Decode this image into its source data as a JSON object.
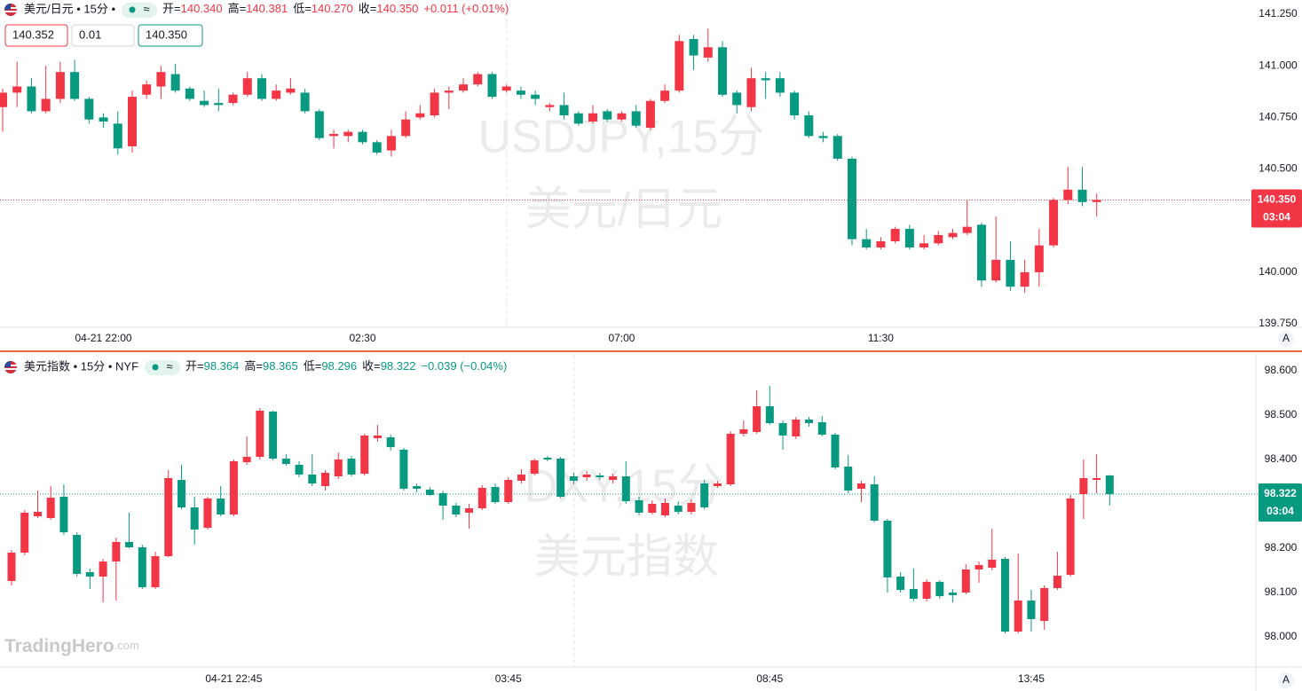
{
  "chart_data": [
    {
      "type": "candlestick",
      "symbol": "美元/日元 • 15分 •",
      "pill_icon": "≈",
      "ohlc": [
        {
          "label": "开=",
          "value": "140.340"
        },
        {
          "label": "高=",
          "value": "140.381"
        },
        {
          "label": "低=",
          "value": "140.270"
        },
        {
          "label": "收=",
          "value": "140.350"
        }
      ],
      "change": "+0.011 (+0.01%)",
      "header_color": "#f23645",
      "bid": "140.352",
      "step": "0.01",
      "ask": "140.350",
      "watermark": [
        "USDJPY,15分",
        "美元/日元"
      ],
      "categories": [
        null,
        null,
        null,
        null,
        null,
        null,
        null,
        "04-21 22:00",
        null,
        null,
        null,
        null,
        null,
        null,
        null,
        null,
        null,
        null,
        null,
        null,
        null,
        null,
        null,
        null,
        null,
        "02:30",
        null,
        null,
        null,
        null,
        null,
        null,
        null,
        null,
        null,
        null,
        null,
        null,
        null,
        null,
        null,
        null,
        null,
        "07:00",
        null,
        null,
        null,
        null,
        null,
        null,
        null,
        null,
        null,
        null,
        null,
        null,
        null,
        null,
        null,
        null,
        null,
        "11:30",
        null,
        null,
        null,
        null,
        null,
        null,
        null,
        null,
        null,
        null,
        null,
        null,
        null,
        null,
        null
      ],
      "open": [
        140.8,
        140.87,
        140.9,
        140.78,
        140.84,
        140.97,
        140.84,
        140.75,
        140.72,
        140.61,
        140.86,
        140.9,
        140.96,
        140.89,
        140.83,
        140.82,
        140.82,
        140.86,
        140.94,
        140.84,
        140.87,
        140.87,
        140.78,
        140.66,
        140.66,
        140.68,
        140.63,
        140.59,
        140.66,
        140.75,
        140.76,
        140.87,
        140.88,
        140.91,
        140.96,
        140.88,
        140.88,
        140.86,
        140.8,
        140.81,
        140.77,
        140.73,
        140.78,
        140.74,
        140.78,
        140.7,
        140.83,
        140.88,
        141.13,
        141.04,
        141.09,
        140.87,
        140.8,
        140.94,
        140.94,
        140.87,
        140.76,
        140.66,
        140.66,
        140.55,
        140.16,
        140.12,
        140.15,
        140.21,
        140.12,
        140.14,
        140.17,
        140.19,
        140.23,
        139.96,
        140.06,
        139.93,
        140.0,
        140.13,
        140.35,
        140.4,
        140.34
      ],
      "high": [
        140.89,
        141.02,
        140.94,
        141.0,
        141.02,
        141.03,
        140.85,
        140.77,
        140.78,
        140.88,
        140.93,
        141.0,
        141.01,
        140.9,
        140.88,
        140.89,
        140.87,
        140.97,
        140.96,
        140.91,
        140.94,
        140.89,
        140.79,
        140.69,
        140.69,
        140.69,
        140.64,
        140.69,
        140.78,
        140.81,
        140.89,
        140.9,
        140.94,
        140.97,
        140.97,
        140.91,
        140.9,
        140.88,
        140.82,
        140.87,
        140.78,
        140.81,
        140.79,
        140.78,
        140.81,
        140.84,
        140.91,
        141.15,
        141.15,
        141.18,
        141.12,
        140.88,
        140.99,
        140.97,
        140.97,
        140.88,
        140.78,
        140.68,
        140.67,
        140.56,
        140.21,
        140.17,
        140.22,
        140.23,
        140.18,
        140.2,
        140.21,
        140.35,
        140.24,
        140.27,
        140.15,
        140.06,
        140.21,
        140.36,
        140.51,
        140.51,
        140.381
      ],
      "low": [
        140.68,
        140.8,
        140.77,
        140.77,
        140.82,
        140.83,
        140.72,
        140.7,
        140.57,
        140.58,
        140.84,
        140.84,
        140.87,
        140.83,
        140.8,
        140.78,
        140.81,
        140.85,
        140.83,
        140.83,
        140.86,
        140.77,
        140.64,
        140.6,
        140.63,
        140.62,
        140.57,
        140.56,
        140.65,
        140.74,
        140.75,
        140.79,
        140.87,
        140.9,
        140.84,
        140.87,
        140.84,
        140.81,
        140.78,
        140.74,
        140.71,
        140.72,
        140.73,
        140.73,
        140.7,
        140.69,
        140.82,
        140.87,
        140.98,
        141.02,
        140.85,
        140.77,
        140.78,
        140.84,
        140.85,
        140.74,
        140.65,
        140.63,
        140.54,
        140.13,
        140.11,
        140.11,
        140.14,
        140.11,
        140.11,
        140.13,
        140.16,
        140.18,
        139.93,
        139.95,
        139.91,
        139.9,
        139.93,
        140.12,
        140.33,
        140.32,
        140.27
      ],
      "close": [
        140.87,
        140.9,
        140.78,
        140.84,
        140.97,
        140.84,
        140.74,
        140.73,
        140.6,
        140.85,
        140.91,
        140.97,
        140.88,
        140.84,
        140.81,
        140.81,
        140.86,
        140.94,
        140.84,
        140.88,
        140.89,
        140.78,
        140.65,
        140.67,
        140.68,
        140.63,
        140.58,
        140.66,
        140.74,
        140.77,
        140.87,
        140.88,
        140.91,
        140.96,
        140.85,
        140.9,
        140.86,
        140.84,
        140.81,
        140.76,
        140.72,
        140.77,
        140.74,
        140.77,
        140.71,
        140.83,
        140.88,
        141.12,
        141.05,
        141.09,
        140.86,
        140.81,
        140.94,
        140.93,
        140.87,
        140.76,
        140.66,
        140.65,
        140.55,
        140.16,
        140.12,
        140.15,
        140.21,
        140.12,
        140.14,
        140.18,
        140.19,
        140.22,
        139.96,
        140.06,
        139.93,
        140.0,
        140.13,
        140.35,
        140.4,
        140.34,
        140.35
      ],
      "up_color": "#f23645",
      "down_color": "#089981",
      "ylim": [
        139.733,
        141.319
      ],
      "yticks": [
        {
          "value": 139.75,
          "label": "139.750"
        },
        {
          "value": 140,
          "label": "140.000"
        },
        {
          "value": 140.5,
          "label": "140.500"
        },
        {
          "value": 140.75,
          "label": "140.750"
        },
        {
          "value": 141,
          "label": "141.000"
        },
        {
          "value": 141.25,
          "label": "141.250"
        }
      ],
      "last_price": {
        "value": 140.35,
        "label": "140.350"
      },
      "countdown": "03:04",
      "last_price_color": "#f23645",
      "scale_button": "A"
    },
    {
      "type": "candlestick",
      "symbol": "美元指数 • 15分 • NYF",
      "pill_icon": "≈",
      "ohlc": [
        {
          "label": "开=",
          "value": "98.364"
        },
        {
          "label": "高=",
          "value": "98.365"
        },
        {
          "label": "低=",
          "value": "98.296"
        },
        {
          "label": "收=",
          "value": "98.322"
        }
      ],
      "change": "−0.039 (−0.04%)",
      "header_color": "#089981",
      "watermark": [
        "DXY,15分",
        "美元指数"
      ],
      "categories": [
        null,
        null,
        null,
        null,
        null,
        null,
        null,
        null,
        null,
        null,
        null,
        null,
        null,
        null,
        null,
        null,
        null,
        "04-21 22:45",
        null,
        null,
        null,
        null,
        null,
        null,
        null,
        null,
        null,
        null,
        null,
        null,
        null,
        null,
        null,
        null,
        null,
        null,
        null,
        null,
        "03:45",
        null,
        null,
        null,
        null,
        null,
        null,
        null,
        null,
        null,
        null,
        null,
        null,
        null,
        null,
        null,
        null,
        null,
        null,
        null,
        "08:45",
        null,
        null,
        null,
        null,
        null,
        null,
        null,
        null,
        null,
        null,
        null,
        null,
        null,
        null,
        null,
        null,
        null,
        null,
        null,
        "13:45",
        null,
        null,
        null,
        null,
        null,
        null
      ],
      "open": [
        98.126,
        98.19,
        98.272,
        98.268,
        98.316,
        98.23,
        98.146,
        98.136,
        98.17,
        98.214,
        98.202,
        98.112,
        98.182,
        98.354,
        98.292,
        98.246,
        98.312,
        98.276,
        98.394,
        98.406,
        98.508,
        98.402,
        98.388,
        98.366,
        98.34,
        98.362,
        98.402,
        98.368,
        98.448,
        98.45,
        98.422,
        98.34,
        98.332,
        98.324,
        98.296,
        98.28,
        98.29,
        98.338,
        98.304,
        98.352,
        98.368,
        98.404,
        98.402,
        98.362,
        98.36,
        98.364,
        98.354,
        98.362,
        98.308,
        98.28,
        98.274,
        98.296,
        98.282,
        98.346,
        98.34,
        98.344,
        98.458,
        98.462,
        98.52,
        98.482,
        98.452,
        98.49,
        98.484,
        98.456,
        98.384,
        98.334,
        98.344,
        98.262,
        98.136,
        98.108,
        98.086,
        98.124,
        98.1,
        98.1,
        98.152,
        98.156,
        98.176,
        98.012,
        98.082,
        98.036,
        98.11,
        98.14,
        98.322,
        98.354,
        98.364
      ],
      "high": [
        98.196,
        98.286,
        98.33,
        98.34,
        98.344,
        98.236,
        98.154,
        98.176,
        98.224,
        98.28,
        98.208,
        98.192,
        98.376,
        98.388,
        98.316,
        98.316,
        98.34,
        98.4,
        98.452,
        98.516,
        98.51,
        98.412,
        98.396,
        98.412,
        98.376,
        98.416,
        98.408,
        98.458,
        98.478,
        98.456,
        98.426,
        98.346,
        98.338,
        98.33,
        98.302,
        98.3,
        98.342,
        98.346,
        98.36,
        98.378,
        98.402,
        98.408,
        98.406,
        98.37,
        98.374,
        98.37,
        98.368,
        98.396,
        98.316,
        98.308,
        98.312,
        98.306,
        98.31,
        98.354,
        98.352,
        98.464,
        98.488,
        98.556,
        98.566,
        98.488,
        98.496,
        98.496,
        98.498,
        98.46,
        98.41,
        98.352,
        98.362,
        98.266,
        98.146,
        98.154,
        98.13,
        98.128,
        98.108,
        98.164,
        98.17,
        98.244,
        98.18,
        98.188,
        98.106,
        98.116,
        98.192,
        98.32,
        98.4,
        98.412,
        98.365
      ],
      "low": [
        98.116,
        98.184,
        98.268,
        98.264,
        98.23,
        98.136,
        98.108,
        98.078,
        98.082,
        98.2,
        98.108,
        98.108,
        98.18,
        98.288,
        98.208,
        98.242,
        98.272,
        98.272,
        98.388,
        98.4,
        98.398,
        98.386,
        98.36,
        98.34,
        98.33,
        98.356,
        98.362,
        98.364,
        98.44,
        98.42,
        98.33,
        98.326,
        98.318,
        98.264,
        98.27,
        98.244,
        98.286,
        98.3,
        98.3,
        98.346,
        98.364,
        98.396,
        98.312,
        98.344,
        98.352,
        98.354,
        98.346,
        98.3,
        98.274,
        98.276,
        98.27,
        98.276,
        98.276,
        98.288,
        98.336,
        98.34,
        98.452,
        98.458,
        98.478,
        98.422,
        98.446,
        98.474,
        98.452,
        98.378,
        98.324,
        98.304,
        98.258,
        98.1,
        98.1,
        98.08,
        98.08,
        98.086,
        98.078,
        98.096,
        98.122,
        98.15,
        98.008,
        98.008,
        98.012,
        98.016,
        98.106,
        98.136,
        98.266,
        98.324,
        98.296
      ],
      "close": [
        98.19,
        98.28,
        98.282,
        98.314,
        98.236,
        98.142,
        98.136,
        98.17,
        98.214,
        98.202,
        98.112,
        98.182,
        98.358,
        98.292,
        98.242,
        98.312,
        98.276,
        98.396,
        98.406,
        98.51,
        98.402,
        98.39,
        98.366,
        98.346,
        98.37,
        98.4,
        98.366,
        98.454,
        98.454,
        98.428,
        98.334,
        98.334,
        98.32,
        98.296,
        98.276,
        98.29,
        98.336,
        98.304,
        98.354,
        98.366,
        98.398,
        98.4,
        98.316,
        98.352,
        98.366,
        98.36,
        98.362,
        98.306,
        98.28,
        98.3,
        98.302,
        98.282,
        98.302,
        98.292,
        98.346,
        98.458,
        98.468,
        98.52,
        98.482,
        98.454,
        98.49,
        98.482,
        98.456,
        98.382,
        98.33,
        98.346,
        98.262,
        98.134,
        98.106,
        98.086,
        98.124,
        98.092,
        98.094,
        98.152,
        98.162,
        98.174,
        98.012,
        98.082,
        98.04,
        98.11,
        98.138,
        98.312,
        98.358,
        98.358,
        98.322
      ],
      "up_color": "#f23645",
      "down_color": "#089981",
      "ylim": [
        97.932,
        98.636
      ],
      "yticks": [
        {
          "value": 98,
          "label": "98.000"
        },
        {
          "value": 98.1,
          "label": "98.100"
        },
        {
          "value": 98.2,
          "label": "98.200"
        },
        {
          "value": 98.3,
          "label": "98.300"
        },
        {
          "value": 98.4,
          "label": "98.400"
        },
        {
          "value": 98.5,
          "label": "98.500"
        },
        {
          "value": 98.6,
          "label": "98.600"
        }
      ],
      "last_price": {
        "value": 98.322,
        "label": "98.322"
      },
      "countdown": "03:04",
      "last_price_color": "#089981",
      "scale_button": "A"
    }
  ],
  "logo": {
    "name": "TradingHero",
    "suffix": ".com"
  }
}
